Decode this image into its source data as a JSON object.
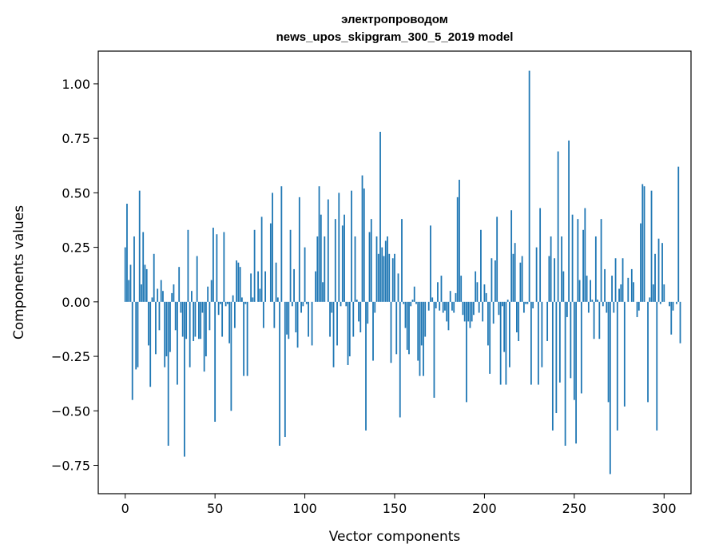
{
  "chart_data": {
    "type": "bar",
    "title_lines": [
      "электропроводом",
      "news_upos_skipgram_300_5_2019 model"
    ],
    "xlabel": "Vector components",
    "ylabel": "Components values",
    "xlim": [
      -15,
      315
    ],
    "ylim": [
      -0.88,
      1.15
    ],
    "xticks": [
      0,
      50,
      100,
      150,
      200,
      250,
      300
    ],
    "yticks": [
      -0.75,
      -0.5,
      -0.25,
      0.0,
      0.25,
      0.5,
      0.75,
      1.0
    ],
    "ytick_labels": [
      "−0.75",
      "−0.50",
      "−0.25",
      "0.00",
      "0.25",
      "0.50",
      "0.75",
      "1.00"
    ],
    "bar_color": "#1f77b4",
    "grid": false,
    "legend": "none",
    "values": [
      0.25,
      0.45,
      0.1,
      0.17,
      -0.45,
      0.3,
      -0.31,
      -0.3,
      0.51,
      0.08,
      0.32,
      0.17,
      0.15,
      -0.2,
      -0.39,
      0.02,
      0.22,
      -0.24,
      0.06,
      -0.13,
      0.1,
      0.05,
      -0.3,
      -0.25,
      -0.66,
      -0.23,
      0.04,
      0.08,
      -0.13,
      -0.38,
      0.16,
      -0.05,
      -0.16,
      -0.71,
      -0.17,
      0.33,
      -0.3,
      0.05,
      -0.18,
      -0.16,
      0.21,
      -0.17,
      -0.17,
      -0.05,
      -0.32,
      -0.25,
      0.07,
      -0.13,
      0.1,
      0.34,
      -0.55,
      0.31,
      -0.06,
      -0.01,
      -0.16,
      0.32,
      -0.02,
      -0.01,
      -0.19,
      -0.5,
      0.03,
      -0.12,
      0.19,
      0.18,
      0.16,
      0.02,
      -0.34,
      -0.01,
      -0.34,
      0.0,
      0.13,
      0.02,
      0.33,
      0.0,
      0.14,
      0.06,
      0.39,
      -0.12,
      0.14,
      0.0,
      0.0,
      0.36,
      0.5,
      -0.12,
      0.18,
      0.02,
      -0.66,
      0.53,
      0.0,
      -0.62,
      -0.15,
      -0.17,
      0.33,
      -0.02,
      0.15,
      -0.14,
      -0.21,
      0.48,
      -0.05,
      -0.02,
      0.25,
      -0.01,
      -0.16,
      0.0,
      -0.2,
      0.0,
      0.14,
      0.3,
      0.53,
      0.4,
      0.09,
      0.3,
      0.0,
      0.47,
      -0.16,
      -0.05,
      -0.3,
      0.38,
      -0.2,
      0.5,
      -0.02,
      0.35,
      0.4,
      -0.02,
      -0.29,
      -0.25,
      0.51,
      -0.16,
      0.3,
      0.01,
      -0.09,
      -0.14,
      0.58,
      0.52,
      -0.59,
      -0.1,
      0.32,
      0.38,
      -0.27,
      -0.05,
      0.3,
      0.22,
      0.78,
      0.25,
      0.21,
      0.28,
      0.3,
      0.22,
      -0.28,
      0.2,
      0.22,
      -0.24,
      0.13,
      -0.53,
      0.38,
      -0.01,
      -0.12,
      -0.22,
      -0.24,
      -0.02,
      0.01,
      0.07,
      -0.01,
      -0.27,
      -0.34,
      -0.2,
      -0.34,
      -0.16,
      0.0,
      -0.04,
      0.35,
      0.02,
      -0.44,
      -0.03,
      0.09,
      -0.04,
      0.12,
      -0.05,
      -0.04,
      -0.09,
      -0.13,
      0.05,
      -0.04,
      -0.05,
      0.04,
      0.48,
      0.56,
      0.12,
      -0.06,
      -0.09,
      -0.46,
      -0.09,
      -0.12,
      -0.09,
      -0.06,
      0.14,
      0.09,
      -0.05,
      0.33,
      -0.09,
      0.08,
      0.04,
      -0.2,
      -0.33,
      0.2,
      -0.1,
      0.19,
      0.39,
      -0.06,
      -0.38,
      -0.02,
      -0.23,
      -0.38,
      0.01,
      -0.3,
      0.42,
      0.22,
      0.27,
      -0.14,
      -0.18,
      0.18,
      0.21,
      -0.05,
      -0.01,
      -0.01,
      1.06,
      -0.38,
      -0.03,
      0.0,
      0.25,
      -0.38,
      0.43,
      -0.3,
      0.0,
      0.0,
      -0.18,
      0.21,
      0.3,
      -0.59,
      0.2,
      -0.51,
      0.69,
      -0.37,
      0.3,
      0.14,
      -0.66,
      -0.07,
      0.74,
      -0.35,
      0.4,
      -0.45,
      -0.65,
      0.38,
      0.1,
      -0.42,
      0.33,
      0.43,
      0.12,
      -0.05,
      0.1,
      0.01,
      -0.17,
      0.3,
      0.01,
      -0.17,
      0.38,
      -0.02,
      0.15,
      -0.05,
      -0.46,
      -0.79,
      0.12,
      -0.05,
      0.2,
      -0.59,
      0.06,
      0.08,
      0.2,
      -0.48,
      0.0,
      0.11,
      0.0,
      0.15,
      0.09,
      0.0,
      -0.07,
      -0.04,
      0.36,
      0.54,
      0.53,
      0.0,
      -0.46,
      0.02,
      0.51,
      0.08,
      0.22,
      -0.59,
      0.29,
      -0.01,
      0.27,
      0.08,
      0.0,
      0.0,
      -0.02,
      -0.15,
      -0.04,
      0.0,
      -0.01,
      0.62,
      -0.19
    ]
  }
}
